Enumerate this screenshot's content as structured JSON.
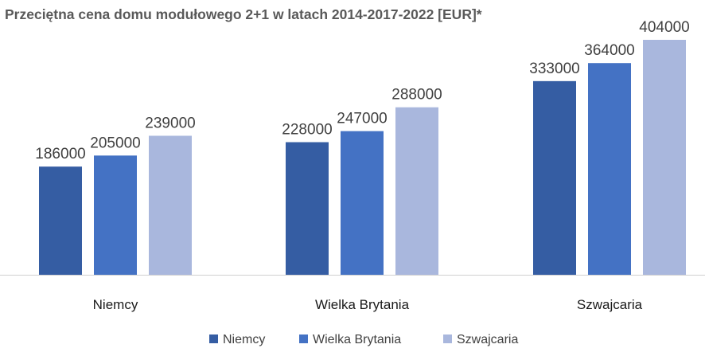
{
  "chart_data": {
    "type": "bar",
    "title": "Przeciętna cena domu modułowego 2+1 w latach 2014-2017-2022 [EUR]*",
    "categories": [
      "Niemcy",
      "Wielka Brytania",
      "Szwajcaria"
    ],
    "series": [
      {
        "name": "Niemcy",
        "color": "#355DA3",
        "values": [
          186000,
          228000,
          333000
        ]
      },
      {
        "name": "Wielka Brytania",
        "color": "#4472C4",
        "values": [
          205000,
          247000,
          364000
        ]
      },
      {
        "name": "Szwajcaria",
        "color": "#A9B7DD",
        "values": [
          239000,
          288000,
          404000
        ]
      }
    ],
    "ylim": [
      0,
      404000
    ],
    "grid": false,
    "legend": "bottom"
  }
}
